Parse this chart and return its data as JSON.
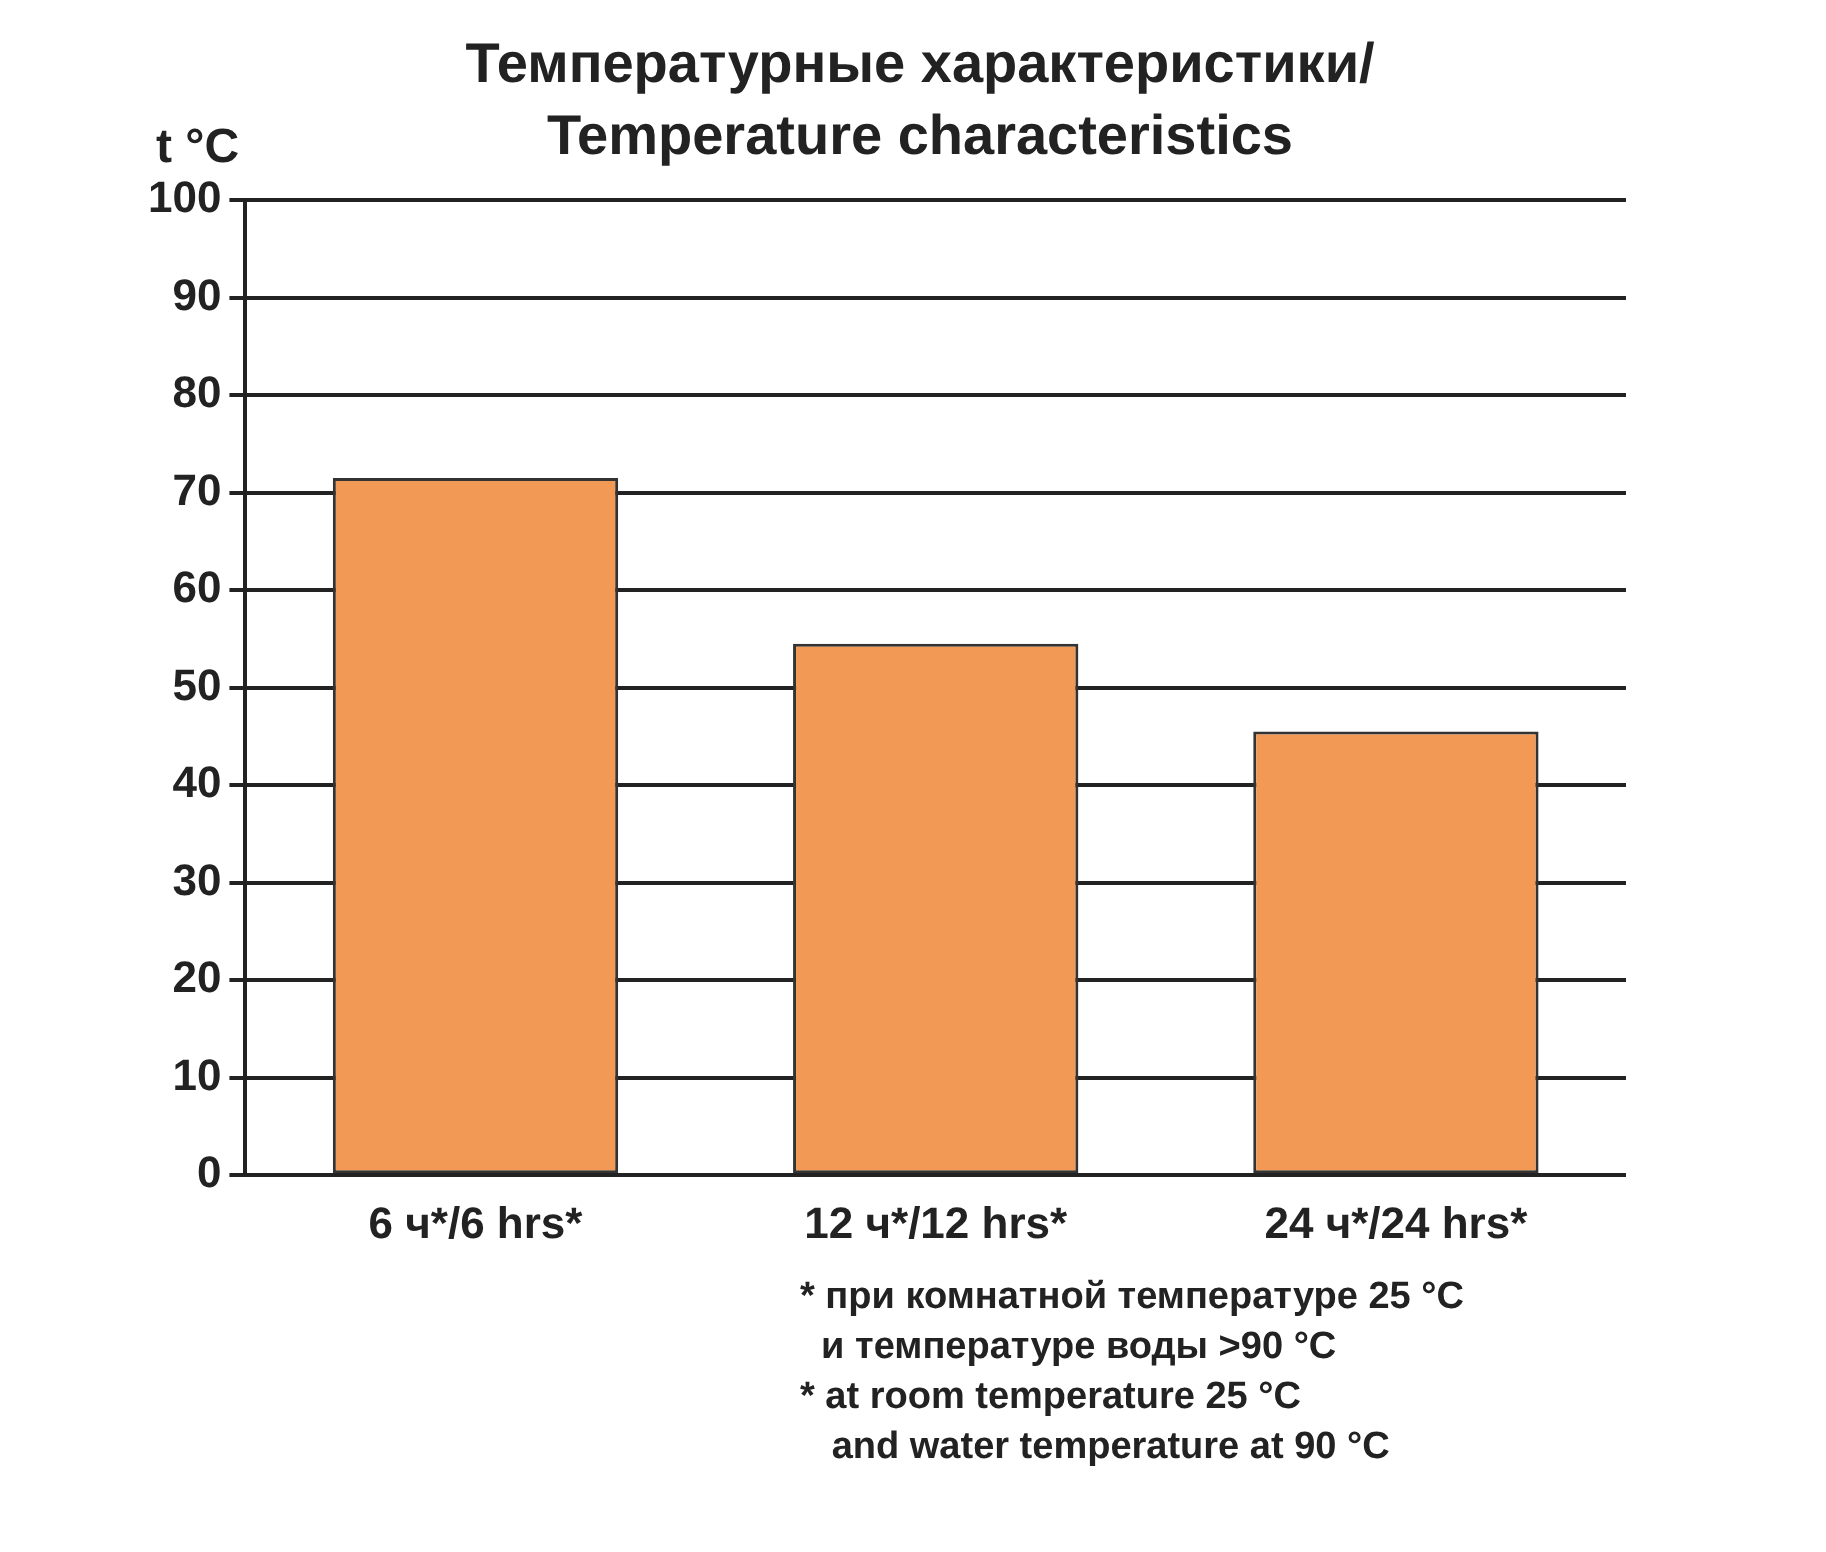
{
  "chart_data": {
    "type": "bar",
    "title": "Температурные характеристики/ Temperature characteristics",
    "ylabel": "t °C",
    "categories": [
      "6 ч*/6 hrs*",
      "12 ч*/12 hrs*",
      "24 ч*/24 hrs*"
    ],
    "values": [
      71.5,
      54.5,
      45.5
    ],
    "color": "#f29a55",
    "ylim": [
      0,
      100
    ],
    "yticks": [
      0,
      10,
      20,
      30,
      40,
      50,
      60,
      70,
      80,
      90,
      100
    ],
    "grid": "y",
    "legend": false,
    "annotations": [
      "* при комнатной температуре 25 °C\n  и температуре воды >90 °C",
      "* at room temperature 25 °C\n   and water temperature at 90 °C"
    ]
  }
}
